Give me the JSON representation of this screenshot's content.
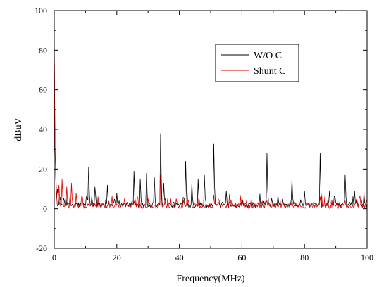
{
  "chart_data": {
    "type": "line",
    "title": "",
    "xlabel": "Frequency(MHz)",
    "ylabel": "dBuV",
    "xlim": [
      0,
      100
    ],
    "ylim": [
      -20,
      100
    ],
    "x_ticks": [
      0,
      20,
      40,
      60,
      80,
      100
    ],
    "y_ticks": [
      -20,
      0,
      20,
      40,
      60,
      80,
      100
    ],
    "x_tick_labels": [
      "0",
      "20",
      "40",
      "60",
      "80",
      "100"
    ],
    "y_tick_labels": [
      "-20",
      "0",
      "20",
      "40",
      "60",
      "80",
      "100"
    ],
    "legend_position": "top-right",
    "grid": false,
    "series": [
      {
        "name": "W/O C",
        "color": "#000000",
        "baseline": 2,
        "spikes": [
          [
            0,
            80
          ],
          [
            0.3,
            30
          ],
          [
            0.6,
            15
          ],
          [
            1,
            10
          ],
          [
            2,
            6
          ],
          [
            3,
            4
          ],
          [
            11,
            21
          ],
          [
            13,
            11
          ],
          [
            17,
            12
          ],
          [
            20,
            8
          ],
          [
            25.5,
            19
          ],
          [
            27.5,
            15
          ],
          [
            29.5,
            18
          ],
          [
            32,
            16
          ],
          [
            34,
            38
          ],
          [
            35,
            13
          ],
          [
            42,
            24
          ],
          [
            44,
            13
          ],
          [
            46,
            15
          ],
          [
            48,
            17
          ],
          [
            51,
            33
          ],
          [
            55,
            9
          ],
          [
            68,
            28
          ],
          [
            76,
            15
          ],
          [
            80,
            9
          ],
          [
            85,
            28
          ],
          [
            88,
            9
          ],
          [
            93,
            17
          ],
          [
            96,
            9
          ],
          [
            99,
            8
          ]
        ]
      },
      {
        "name": "Shunt C",
        "color": "#e00000",
        "baseline": 1.5,
        "spikes": [
          [
            0,
            88
          ],
          [
            0.3,
            30
          ],
          [
            0.6,
            18
          ],
          [
            1.5,
            12
          ],
          [
            2.5,
            15
          ],
          [
            4,
            11
          ],
          [
            5.5,
            13
          ],
          [
            7,
            8
          ],
          [
            9,
            6
          ],
          [
            12,
            3
          ],
          [
            25.5,
            4
          ],
          [
            30,
            5
          ],
          [
            34,
            17
          ],
          [
            42.5,
            8
          ],
          [
            51,
            7
          ],
          [
            60,
            3
          ],
          [
            68,
            4
          ],
          [
            76,
            4
          ],
          [
            85,
            6
          ],
          [
            93,
            4
          ]
        ]
      }
    ]
  }
}
